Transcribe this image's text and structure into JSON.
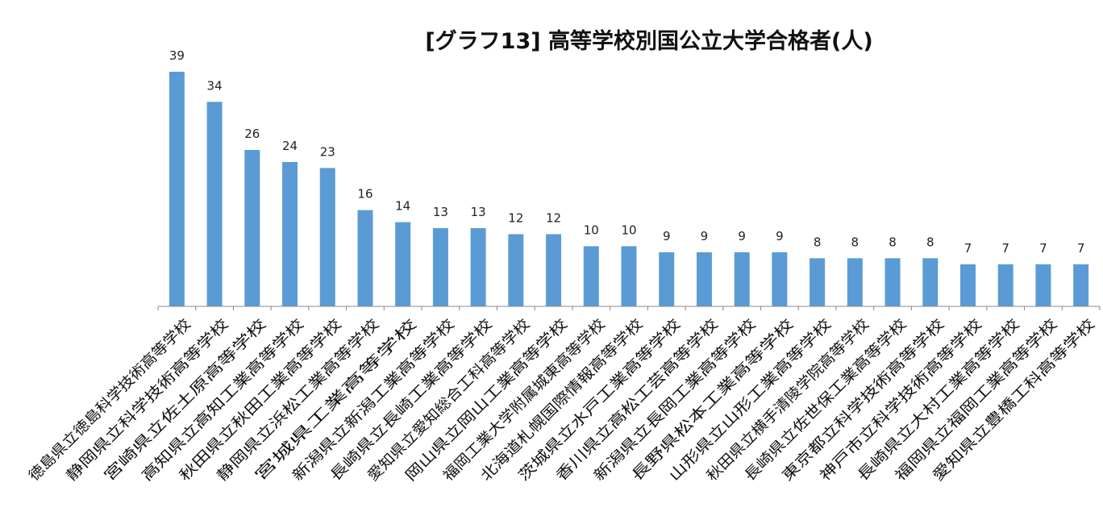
{
  "chart_data": {
    "type": "bar",
    "title": "[グラフ13] 高等学校別国公立大学合格者(人)",
    "xlabel": "",
    "ylabel": "",
    "ylim": [
      0,
      39
    ],
    "grid": false,
    "legend": "none",
    "bar_color": "#5B9BD5",
    "categories": [
      "徳島県立徳島科学技術高等学校",
      "静岡県立科学技術高等学校",
      "宮崎県立佐土原高等学校",
      "高知県立高知工業高等学校",
      "秋田県立秋田工業高等学校",
      "静岡県立浜松工業高等学校",
      "宮城県工業高等学校",
      "新潟県立新潟工業高等学校",
      "長崎県立長崎工業高等学校",
      "愛知県立愛知総合工科高等学校",
      "岡山県立岡山工業高等学校",
      "福岡工業大学附属城東高等学校",
      "北海道札幌国際情報高等学校",
      "茨城県立水戸工業高等学校",
      "香川県立高松工芸高等学校",
      "新潟県立長岡工業高等学校",
      "長野県松本工業高等学校",
      "山形県立山形工業高等学校",
      "秋田県立横手清陵学院高等学校",
      "長崎県立佐世保工業高等学校",
      "東京都立科学技術高等学校",
      "神戸市立科学技術高等学校",
      "長崎県立大村工業高等学校",
      "福岡県立福岡工業高等学校",
      "愛知県立豊橋工科高等学校"
    ],
    "values": [
      39,
      34,
      26,
      24,
      23,
      16,
      14,
      13,
      13,
      12,
      12,
      10,
      10,
      9,
      9,
      9,
      9,
      8,
      8,
      8,
      8,
      7,
      7,
      7,
      7
    ]
  }
}
